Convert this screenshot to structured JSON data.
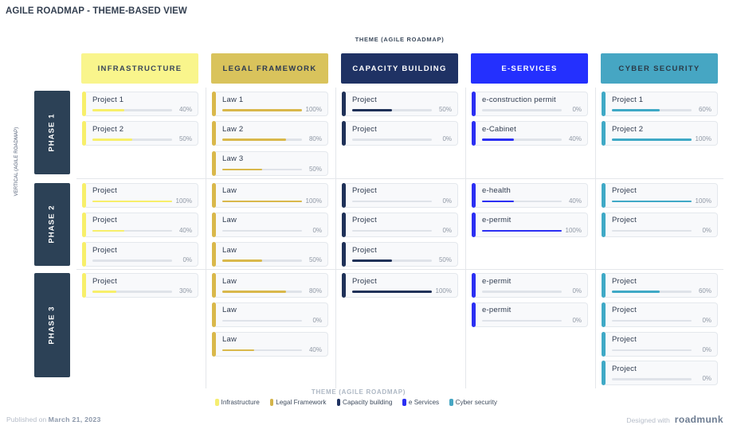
{
  "title": "AGILE ROADMAP - THEME-BASED VIEW",
  "axes": {
    "top_label": "THEME (AGILE ROADMAP)",
    "bottom_label": "THEME (AGILE ROADMAP)",
    "left_label": "VERTICAL (AGILE ROADMAP)"
  },
  "columns": [
    {
      "id": "infrastructure",
      "label": "INFRASTRUCTURE",
      "header_bg": "#f9f58c",
      "header_text": "#39465a",
      "accent": "#f7ef6a"
    },
    {
      "id": "legal-framework",
      "label": "LEGAL FRAMEWORK",
      "header_bg": "#d9c35c",
      "header_text": "#2c3a51",
      "accent": "#d9b84b"
    },
    {
      "id": "capacity-building",
      "label": "CAPACITY BUILDING",
      "header_bg": "#1f3264",
      "header_text": "#ffffff",
      "accent": "#1f3158"
    },
    {
      "id": "e-services",
      "label": "E-SERVICES",
      "header_bg": "#2430fe",
      "header_text": "#ffffff",
      "accent": "#2b2ff3"
    },
    {
      "id": "cyber-security",
      "label": "CYBER SECURITY",
      "header_bg": "#46a6c3",
      "header_text": "#2b3a47",
      "accent": "#3fa9c6"
    }
  ],
  "phases": [
    {
      "id": "phase-1",
      "label": "PHASE 1"
    },
    {
      "id": "phase-2",
      "label": "PHASE 2"
    },
    {
      "id": "phase-3",
      "label": "PHASE 3"
    }
  ],
  "cards": {
    "infrastructure": {
      "phase-1": [
        {
          "label": "Project 1",
          "percent": 40,
          "percent_label": "40%"
        },
        {
          "label": "Project 2",
          "percent": 50,
          "percent_label": "50%"
        }
      ],
      "phase-2": [
        {
          "label": "Project",
          "percent": 100,
          "percent_label": "100%"
        },
        {
          "label": "Project",
          "percent": 40,
          "percent_label": "40%"
        },
        {
          "label": "Project",
          "percent": 0,
          "percent_label": "0%"
        }
      ],
      "phase-3": [
        {
          "label": "Project",
          "percent": 30,
          "percent_label": "30%"
        }
      ]
    },
    "legal-framework": {
      "phase-1": [
        {
          "label": "Law 1",
          "percent": 100,
          "percent_label": "100%"
        },
        {
          "label": "Law 2",
          "percent": 80,
          "percent_label": "80%"
        },
        {
          "label": "Law 3",
          "percent": 50,
          "percent_label": "50%"
        }
      ],
      "phase-2": [
        {
          "label": "Law",
          "percent": 100,
          "percent_label": "100%"
        },
        {
          "label": "Law",
          "percent": 0,
          "percent_label": "0%"
        },
        {
          "label": "Law",
          "percent": 50,
          "percent_label": "50%"
        }
      ],
      "phase-3": [
        {
          "label": "Law",
          "percent": 80,
          "percent_label": "80%"
        },
        {
          "label": "Law",
          "percent": 0,
          "percent_label": "0%"
        },
        {
          "label": "Law",
          "percent": 40,
          "percent_label": "40%"
        }
      ]
    },
    "capacity-building": {
      "phase-1": [
        {
          "label": "Project",
          "percent": 50,
          "percent_label": "50%"
        },
        {
          "label": "Project",
          "percent": 0,
          "percent_label": "0%"
        }
      ],
      "phase-2": [
        {
          "label": "Project",
          "percent": 0,
          "percent_label": "0%"
        },
        {
          "label": "Project",
          "percent": 0,
          "percent_label": "0%"
        },
        {
          "label": "Project",
          "percent": 50,
          "percent_label": "50%"
        }
      ],
      "phase-3": [
        {
          "label": "Project",
          "percent": 100,
          "percent_label": "100%"
        }
      ]
    },
    "e-services": {
      "phase-1": [
        {
          "label": "e-construction permit",
          "percent": 0,
          "percent_label": "0%"
        },
        {
          "label": "e-Cabinet",
          "percent": 40,
          "percent_label": "40%"
        }
      ],
      "phase-2": [
        {
          "label": "e-health",
          "percent": 40,
          "percent_label": "40%"
        },
        {
          "label": "e-permit",
          "percent": 100,
          "percent_label": "100%"
        }
      ],
      "phase-3": [
        {
          "label": "e-permit",
          "percent": 0,
          "percent_label": "0%"
        },
        {
          "label": "e-permit",
          "percent": 0,
          "percent_label": "0%"
        }
      ]
    },
    "cyber-security": {
      "phase-1": [
        {
          "label": "Project 1",
          "percent": 60,
          "percent_label": "60%"
        },
        {
          "label": "Project 2",
          "percent": 100,
          "percent_label": "100%"
        }
      ],
      "phase-2": [
        {
          "label": "Project",
          "percent": 100,
          "percent_label": "100%"
        },
        {
          "label": "Project",
          "percent": 0,
          "percent_label": "0%"
        }
      ],
      "phase-3": [
        {
          "label": "Project",
          "percent": 60,
          "percent_label": "60%"
        },
        {
          "label": "Project",
          "percent": 0,
          "percent_label": "0%"
        },
        {
          "label": "Project",
          "percent": 0,
          "percent_label": "0%"
        },
        {
          "label": "Project",
          "percent": 0,
          "percent_label": "0%"
        }
      ]
    }
  },
  "legend": {
    "items": [
      {
        "label": "Infrastructure",
        "color": "#f5ee71"
      },
      {
        "label": "Legal Framework",
        "color": "#d4b44a"
      },
      {
        "label": "Capacity building",
        "color": "#1f3261"
      },
      {
        "label": "e Services",
        "color": "#2b2ff3"
      },
      {
        "label": "Cyber security",
        "color": "#46a6c3"
      }
    ]
  },
  "footer": {
    "published_prefix": "Published on",
    "published_date": "March 21, 2023",
    "designed_with": "Designed with",
    "brand": "roadmunk"
  }
}
